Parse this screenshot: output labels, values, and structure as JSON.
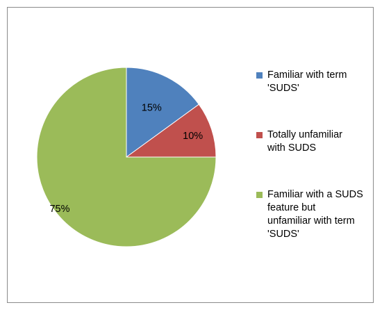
{
  "chart_data": {
    "type": "pie",
    "categories": [
      "Familiar with term 'SUDS'",
      "Totally unfamiliar with SUDS",
      "Familiar with a SUDS feature but unfamiliar with term 'SUDS'"
    ],
    "values": [
      15,
      10,
      75
    ],
    "data_labels": [
      "15%",
      "10%",
      "75%"
    ],
    "colors": [
      "#4f81bd",
      "#c0504d",
      "#9bbb59"
    ],
    "legend_position": "right",
    "start_angle": "12 o'clock",
    "direction": "clockwise"
  },
  "legend": {
    "items": [
      {
        "label_lines": [
          "Familiar with term",
          "'SUDS'"
        ],
        "color": "#4f81bd"
      },
      {
        "label_lines": [
          "Totally unfamiliar",
          "with SUDS"
        ],
        "color": "#c0504d"
      },
      {
        "label_lines": [
          "Familiar with a SUDS",
          "feature but",
          "unfamiliar with term",
          "'SUDS'"
        ],
        "color": "#9bbb59"
      }
    ]
  }
}
